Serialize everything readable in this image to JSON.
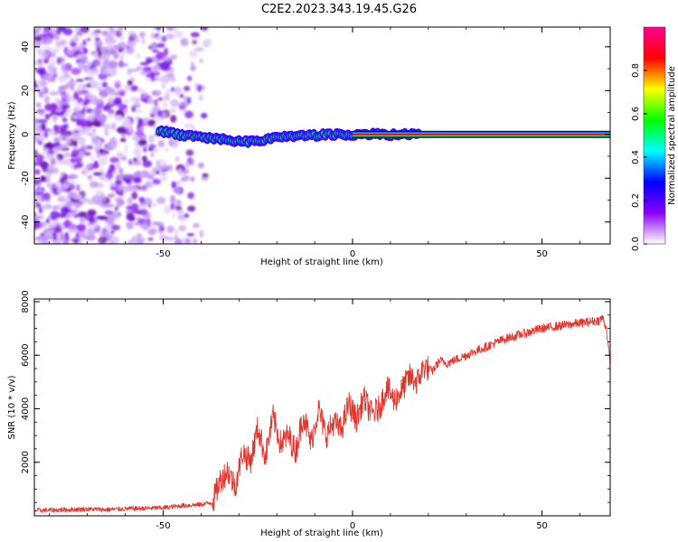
{
  "figure": {
    "title": "C2E2.2023.343.19.45.G26"
  },
  "chart_data": [
    {
      "type": "heatmap",
      "xlabel": "Height of straight line (km)",
      "ylabel": "Frequency (Hz)",
      "xlim": [
        -84,
        68
      ],
      "ylim": [
        -50,
        49
      ],
      "xticks": [
        -50,
        0,
        50
      ],
      "yticks": [
        -40,
        -20,
        0,
        20,
        40
      ],
      "grid": false,
      "colorbar": {
        "label": "Normalized spectral amplitude",
        "range": [
          0,
          1
        ],
        "ticks": [
          0.0,
          0.2,
          0.4,
          0.6,
          0.8
        ],
        "tick_labels": [
          "0.0",
          "0.2",
          "0.4",
          "0.6",
          "0.8"
        ],
        "colormap": [
          "#ff0090",
          "#ff0000",
          "#ffff00",
          "#00ff00",
          "#00ffff",
          "#0000ff",
          "#8a00ff",
          "#ffffff"
        ]
      },
      "noise_region": {
        "x_range": [
          -84,
          -38
        ],
        "amplitude": [
          0.05,
          0.2
        ]
      },
      "ridge_centerline": {
        "x": [
          -51,
          -48,
          -45,
          -42,
          -39,
          -36,
          -33,
          -30,
          -27,
          -24,
          -21,
          -18,
          -15,
          -12,
          -9,
          -6,
          -3,
          0,
          3,
          6,
          9,
          12,
          15,
          18,
          25,
          35,
          45,
          55,
          68
        ],
        "y": [
          1.5,
          0.5,
          -0.2,
          -0.8,
          -1.5,
          -2.0,
          -2.5,
          -3.0,
          -3.5,
          -2.5,
          -1.8,
          -1.2,
          -0.8,
          -0.5,
          -0.3,
          -0.2,
          -0.1,
          0.0,
          0.0,
          0.0,
          0.0,
          0.0,
          0.0,
          0.0,
          0.0,
          0.0,
          0.0,
          0.0,
          0.0
        ]
      }
    },
    {
      "type": "line",
      "xlabel": "Height of straight line (km)",
      "ylabel": "SNR (10 * v/v)",
      "xlim": [
        -84,
        68
      ],
      "ylim": [
        0,
        8100
      ],
      "xticks": [
        -50,
        0,
        50
      ],
      "yticks": [
        2000,
        4000,
        6000,
        8000
      ],
      "grid": false,
      "series": [
        {
          "color": "#e8332c",
          "x": [
            -84,
            -80,
            -75,
            -70,
            -65,
            -60,
            -55,
            -50,
            -45,
            -40,
            -37,
            -35,
            -33,
            -31,
            -29,
            -27,
            -25,
            -23,
            -21,
            -19,
            -17,
            -15,
            -13,
            -11,
            -9,
            -7,
            -5,
            -3,
            -1,
            1,
            3,
            5,
            7,
            9,
            11,
            13,
            15,
            17,
            19,
            21,
            23,
            25,
            30,
            35,
            40,
            45,
            50,
            55,
            60,
            65,
            66,
            67,
            68
          ],
          "y": [
            200,
            210,
            230,
            250,
            230,
            260,
            280,
            300,
            380,
            420,
            500,
            1300,
            1700,
            1100,
            2400,
            2000,
            3300,
            2200,
            3700,
            2700,
            3000,
            2400,
            3800,
            2700,
            4000,
            3000,
            3500,
            3200,
            4200,
            3600,
            4400,
            3800,
            4000,
            4800,
            4300,
            4700,
            5200,
            5000,
            5600,
            5400,
            5800,
            5700,
            6000,
            6300,
            6600,
            6800,
            7000,
            7100,
            7200,
            7300,
            7400,
            7000,
            5600
          ]
        }
      ]
    }
  ]
}
